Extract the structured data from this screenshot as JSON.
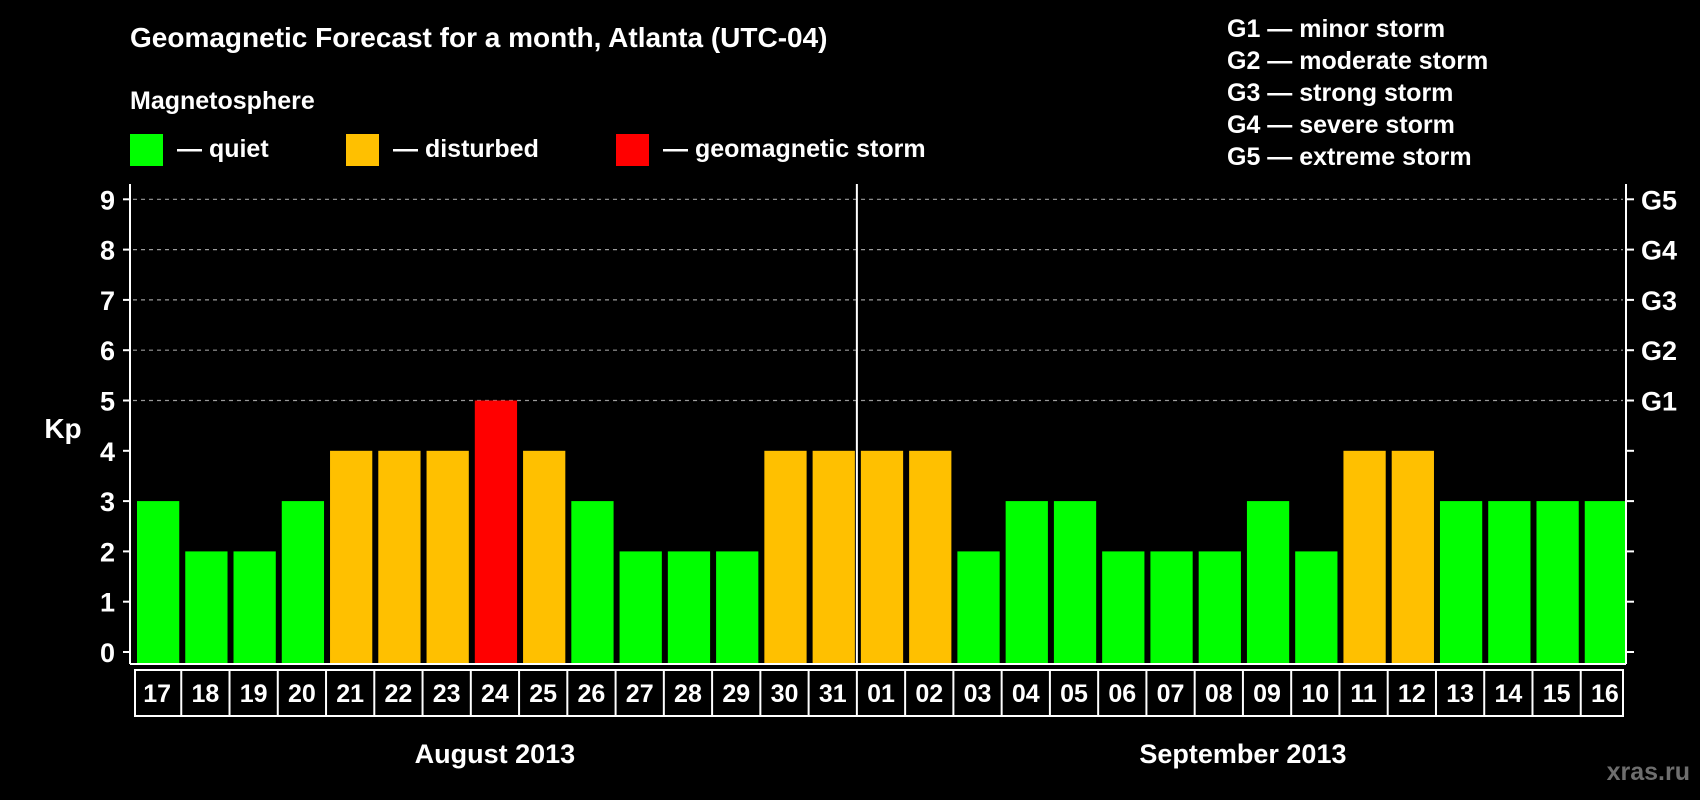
{
  "chart_data": {
    "type": "bar",
    "title": "Geomagnetic Forecast for a month, Atlanta (UTC-04)",
    "legend": {
      "heading": "Magnetosphere",
      "items": [
        {
          "label": "— quiet",
          "color": "#00ff00"
        },
        {
          "label": "— disturbed",
          "color": "#ffc000"
        },
        {
          "label": "— geomagnetic storm",
          "color": "#ff0000"
        }
      ]
    },
    "storm_scale": [
      "G1 — minor storm",
      "G2 — moderate storm",
      "G3 — strong storm",
      "G4 — severe storm",
      "G5 — extreme storm"
    ],
    "ylabel": "Kp",
    "ylim": [
      0,
      9
    ],
    "yticks": [
      "0",
      "1",
      "2",
      "3",
      "4",
      "5",
      "6",
      "7",
      "8",
      "9"
    ],
    "right_axis": [
      {
        "kp": 5,
        "label": "G1"
      },
      {
        "kp": 6,
        "label": "G2"
      },
      {
        "kp": 7,
        "label": "G3"
      },
      {
        "kp": 8,
        "label": "G4"
      },
      {
        "kp": 9,
        "label": "G5"
      }
    ],
    "categories": [
      "17",
      "18",
      "19",
      "20",
      "21",
      "22",
      "23",
      "24",
      "25",
      "26",
      "27",
      "28",
      "29",
      "30",
      "31",
      "01",
      "02",
      "03",
      "04",
      "05",
      "06",
      "07",
      "08",
      "09",
      "10",
      "11",
      "12",
      "13",
      "14",
      "15",
      "16"
    ],
    "values": [
      3,
      2,
      2,
      3,
      4,
      4,
      4,
      5,
      4,
      3,
      2,
      2,
      2,
      4,
      4,
      4,
      4,
      2,
      3,
      3,
      2,
      2,
      2,
      3,
      2,
      4,
      4,
      3,
      3,
      3,
      3
    ],
    "months": [
      {
        "label": "August 2013",
        "start": 0,
        "count": 15
      },
      {
        "label": "September 2013",
        "start": 15,
        "count": 16
      }
    ],
    "colors": {
      "quiet": "#00ff00",
      "disturbed": "#ffc000",
      "storm": "#ff0000"
    },
    "watermark": "xras.ru",
    "grid": true
  }
}
